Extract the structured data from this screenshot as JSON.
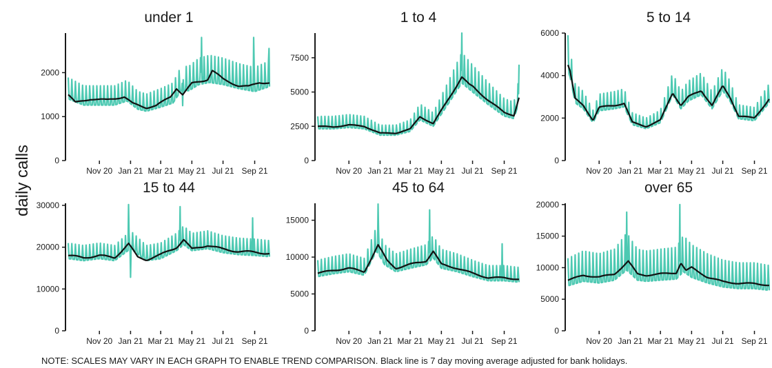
{
  "figure": {
    "ylabel": "daily calls",
    "note": "NOTE: SCALES MAY VARY IN EACH GRAPH TO ENABLE TREND COMPARISON. Black line is 7 day moving average adjusted for bank holidays."
  },
  "colors": {
    "daily": "#4dc9b2",
    "average": "#111111",
    "axis": "#1a1a1a"
  },
  "chart_data": [
    {
      "type": "line",
      "title": "under 1",
      "x_range": [
        "2020-09-01",
        "2021-09-30"
      ],
      "ylim": [
        0,
        2900
      ],
      "yticks": [
        0,
        1000,
        2000
      ],
      "xticks": [
        {
          "date": "2020-11-01",
          "label": "Nov 20"
        },
        {
          "date": "2021-01-01",
          "label": "Jan 21"
        },
        {
          "date": "2021-03-01",
          "label": "Mar 21"
        },
        {
          "date": "2021-05-01",
          "label": "May 21"
        },
        {
          "date": "2021-07-01",
          "label": "Jul 21"
        },
        {
          "date": "2021-09-01",
          "label": "Sep 21"
        }
      ],
      "series": [
        {
          "kind": "daily",
          "weekly_amplitude": 0.25,
          "x": [
            "2020-09-01",
            "2020-10-01",
            "2020-11-01",
            "2020-12-01",
            "2020-12-25",
            "2021-01-15",
            "2021-02-01",
            "2021-03-01",
            "2021-03-25",
            "2021-04-10",
            "2021-04-25",
            "2021-05-15",
            "2021-06-05",
            "2021-07-01",
            "2021-08-01",
            "2021-09-01",
            "2021-09-30"
          ],
          "y": [
            1500,
            1350,
            1350,
            1350,
            1450,
            1250,
            1200,
            1300,
            1400,
            1700,
            1700,
            1850,
            1900,
            1850,
            1750,
            1680,
            1800
          ],
          "spikes": [
            {
              "date": "2021-04-13",
              "y": 1250
            },
            {
              "date": "2021-05-20",
              "y": 2800
            },
            {
              "date": "2021-08-30",
              "y": 2800
            },
            {
              "date": "2021-09-29",
              "y": 2550
            }
          ]
        },
        {
          "kind": "average",
          "x": [
            "2020-09-01",
            "2020-09-15",
            "2020-10-15",
            "2020-11-15",
            "2020-12-20",
            "2021-01-05",
            "2021-02-01",
            "2021-02-20",
            "2021-03-20",
            "2021-04-01",
            "2021-04-13",
            "2021-05-01",
            "2021-06-01",
            "2021-06-10",
            "2021-07-01",
            "2021-08-01",
            "2021-08-20",
            "2021-09-10",
            "2021-09-30"
          ],
          "y": [
            1500,
            1320,
            1400,
            1380,
            1450,
            1300,
            1200,
            1250,
            1450,
            1650,
            1500,
            1750,
            1850,
            2050,
            1850,
            1700,
            1680,
            1780,
            1770
          ]
        }
      ]
    },
    {
      "type": "line",
      "title": "1 to 4",
      "x_range": [
        "2020-09-01",
        "2021-09-30"
      ],
      "ylim": [
        0,
        9300
      ],
      "yticks": [
        0,
        2500,
        5000,
        7500
      ],
      "xticks": [
        {
          "date": "2020-11-01",
          "label": "Nov 20"
        },
        {
          "date": "2021-01-01",
          "label": "Jan 21"
        },
        {
          "date": "2021-03-01",
          "label": "Mar 21"
        },
        {
          "date": "2021-05-01",
          "label": "May 21"
        },
        {
          "date": "2021-07-01",
          "label": "Jul 21"
        },
        {
          "date": "2021-09-01",
          "label": "Sep 21"
        }
      ],
      "series": [
        {
          "kind": "daily",
          "weekly_amplitude": 0.28,
          "x": [
            "2020-09-01",
            "2020-10-01",
            "2020-11-01",
            "2020-12-01",
            "2021-01-01",
            "2021-02-01",
            "2021-03-01",
            "2021-03-20",
            "2021-04-15",
            "2021-05-15",
            "2021-06-10",
            "2021-07-01",
            "2021-08-01",
            "2021-09-01",
            "2021-09-20",
            "2021-09-30"
          ],
          "y": [
            2500,
            2500,
            2600,
            2500,
            2000,
            2000,
            2300,
            3200,
            2700,
            4500,
            6100,
            5400,
            4400,
            3500,
            3300,
            4600
          ],
          "spikes": [
            {
              "date": "2021-06-10",
              "y": 9300
            },
            {
              "date": "2021-09-30",
              "y": 7000
            }
          ]
        },
        {
          "kind": "average",
          "x": [
            "2020-09-01",
            "2020-10-01",
            "2020-11-01",
            "2020-12-01",
            "2021-01-01",
            "2021-02-01",
            "2021-03-01",
            "2021-03-20",
            "2021-04-15",
            "2021-05-15",
            "2021-06-10",
            "2021-06-25",
            "2021-07-01",
            "2021-08-01",
            "2021-09-01",
            "2021-09-20",
            "2021-09-30"
          ],
          "y": [
            2500,
            2450,
            2600,
            2500,
            2000,
            2000,
            2300,
            3200,
            2700,
            4500,
            6100,
            5500,
            5400,
            4400,
            3500,
            3300,
            4600
          ]
        }
      ]
    },
    {
      "type": "line",
      "title": "5 to 14",
      "x_range": [
        "2020-09-01",
        "2021-09-30"
      ],
      "ylim": [
        0,
        6000
      ],
      "yticks": [
        0,
        2000,
        4000,
        6000
      ],
      "xticks": [
        {
          "date": "2020-11-01",
          "label": "Nov 20"
        },
        {
          "date": "2021-01-01",
          "label": "Jan 21"
        },
        {
          "date": "2021-03-01",
          "label": "Mar 21"
        },
        {
          "date": "2021-05-01",
          "label": "May 21"
        },
        {
          "date": "2021-07-01",
          "label": "Jul 21"
        },
        {
          "date": "2021-09-01",
          "label": "Sep 21"
        }
      ],
      "series": [
        {
          "kind": "daily",
          "weekly_amplitude": 0.24,
          "x": [
            "2020-09-01",
            "2020-09-05",
            "2020-09-15",
            "2020-10-01",
            "2020-10-20",
            "2020-11-01",
            "2020-12-01",
            "2020-12-20",
            "2021-01-05",
            "2021-02-01",
            "2021-03-01",
            "2021-03-25",
            "2021-04-10",
            "2021-04-25",
            "2021-05-20",
            "2021-06-10",
            "2021-07-01",
            "2021-07-15",
            "2021-08-01",
            "2021-09-01",
            "2021-09-30"
          ],
          "y": [
            4500,
            4200,
            2900,
            2600,
            1900,
            2500,
            2600,
            2700,
            1800,
            1600,
            1900,
            3300,
            2600,
            3000,
            3300,
            2600,
            3500,
            3000,
            2100,
            2000,
            2900
          ],
          "spikes": [
            {
              "date": "2020-09-01",
              "y": 5900
            }
          ]
        },
        {
          "kind": "average",
          "x": [
            "2020-09-01",
            "2020-09-05",
            "2020-09-15",
            "2020-10-01",
            "2020-10-20",
            "2020-11-01",
            "2020-12-01",
            "2020-12-20",
            "2021-01-05",
            "2021-02-01",
            "2021-03-01",
            "2021-03-25",
            "2021-04-10",
            "2021-04-25",
            "2021-05-20",
            "2021-06-10",
            "2021-07-01",
            "2021-07-15",
            "2021-08-01",
            "2021-09-01",
            "2021-09-30"
          ],
          "y": [
            4500,
            4200,
            2900,
            2600,
            1900,
            2500,
            2600,
            2700,
            1800,
            1600,
            1900,
            3200,
            2600,
            3000,
            3300,
            2600,
            3500,
            3000,
            2100,
            2000,
            2900
          ]
        }
      ]
    },
    {
      "type": "line",
      "title": "15 to 44",
      "x_range": [
        "2020-09-01",
        "2021-09-30"
      ],
      "ylim": [
        0,
        30500
      ],
      "yticks": [
        0,
        10000,
        20000,
        30000
      ],
      "xticks": [
        {
          "date": "2020-11-01",
          "label": "Nov 20"
        },
        {
          "date": "2021-01-01",
          "label": "Jan 21"
        },
        {
          "date": "2021-03-01",
          "label": "Mar 21"
        },
        {
          "date": "2021-05-01",
          "label": "May 21"
        },
        {
          "date": "2021-07-01",
          "label": "Jul 21"
        },
        {
          "date": "2021-09-01",
          "label": "Sep 21"
        }
      ],
      "series": [
        {
          "kind": "daily",
          "weekly_amplitude": 0.16,
          "x": [
            "2020-09-01",
            "2020-10-01",
            "2020-11-01",
            "2020-12-01",
            "2021-01-01",
            "2021-02-01",
            "2021-03-01",
            "2021-04-01",
            "2021-04-15",
            "2021-05-01",
            "2021-06-01",
            "2021-07-01",
            "2021-08-01",
            "2021-09-01",
            "2021-09-30"
          ],
          "y": [
            18000,
            17500,
            18000,
            17500,
            20500,
            17500,
            18000,
            20000,
            21500,
            20000,
            20500,
            19500,
            19000,
            18800,
            18500
          ],
          "spikes": [
            {
              "date": "2020-12-28",
              "y": 30200
            },
            {
              "date": "2021-01-01",
              "y": 12800
            },
            {
              "date": "2021-04-08",
              "y": 29700
            },
            {
              "date": "2021-08-28",
              "y": 27000
            }
          ]
        },
        {
          "kind": "average",
          "x": [
            "2020-09-01",
            "2020-10-01",
            "2020-11-01",
            "2020-12-01",
            "2020-12-28",
            "2021-01-15",
            "2021-02-01",
            "2021-03-01",
            "2021-04-01",
            "2021-04-15",
            "2021-05-01",
            "2021-06-01",
            "2021-07-01",
            "2021-08-01",
            "2021-09-01",
            "2021-09-30"
          ],
          "y": [
            18000,
            17500,
            18000,
            17500,
            20800,
            17600,
            17000,
            18200,
            20000,
            21800,
            19500,
            20500,
            19500,
            19000,
            18800,
            18500
          ]
        }
      ]
    },
    {
      "type": "line",
      "title": "45 to 64",
      "x_range": [
        "2020-09-01",
        "2021-09-30"
      ],
      "ylim": [
        0,
        17300
      ],
      "yticks": [
        0,
        5000,
        10000,
        15000
      ],
      "xticks": [
        {
          "date": "2020-11-01",
          "label": "Nov 20"
        },
        {
          "date": "2021-01-01",
          "label": "Jan 21"
        },
        {
          "date": "2021-03-01",
          "label": "Mar 21"
        },
        {
          "date": "2021-05-01",
          "label": "May 21"
        },
        {
          "date": "2021-07-01",
          "label": "Jul 21"
        },
        {
          "date": "2021-09-01",
          "label": "Sep 21"
        }
      ],
      "series": [
        {
          "kind": "daily",
          "weekly_amplitude": 0.22,
          "x": [
            "2020-09-01",
            "2020-10-01",
            "2020-11-01",
            "2020-12-01",
            "2020-12-25",
            "2021-01-10",
            "2021-02-01",
            "2021-03-01",
            "2021-04-01",
            "2021-04-15",
            "2021-05-01",
            "2021-06-01",
            "2021-07-01",
            "2021-08-01",
            "2021-09-01",
            "2021-09-30"
          ],
          "y": [
            7800,
            8200,
            8500,
            8000,
            11500,
            9500,
            8500,
            9000,
            9500,
            10500,
            9000,
            8500,
            7800,
            7200,
            7200,
            7000
          ],
          "spikes": [
            {
              "date": "2020-12-28",
              "y": 17200
            },
            {
              "date": "2021-04-08",
              "y": 16400
            },
            {
              "date": "2021-08-28",
              "y": 11800
            }
          ]
        },
        {
          "kind": "average",
          "x": [
            "2020-09-01",
            "2020-10-01",
            "2020-11-01",
            "2020-12-01",
            "2020-12-28",
            "2021-01-15",
            "2021-02-01",
            "2021-03-01",
            "2021-04-01",
            "2021-04-15",
            "2021-05-01",
            "2021-06-01",
            "2021-07-01",
            "2021-08-01",
            "2021-09-01",
            "2021-09-30"
          ],
          "y": [
            7800,
            8200,
            8500,
            8000,
            11600,
            9500,
            8500,
            9000,
            9500,
            10800,
            9000,
            8500,
            7800,
            7200,
            7200,
            7000
          ]
        }
      ]
    },
    {
      "type": "line",
      "title": "over 65",
      "x_range": [
        "2020-09-01",
        "2021-09-30"
      ],
      "ylim": [
        0,
        20200
      ],
      "yticks": [
        0,
        5000,
        10000,
        15000,
        20000
      ],
      "xticks": [
        {
          "date": "2020-11-01",
          "label": "Nov 20"
        },
        {
          "date": "2021-01-01",
          "label": "Jan 21"
        },
        {
          "date": "2021-03-01",
          "label": "Mar 21"
        },
        {
          "date": "2021-05-01",
          "label": "May 21"
        },
        {
          "date": "2021-07-01",
          "label": "Jul 21"
        },
        {
          "date": "2021-09-01",
          "label": "Sep 21"
        }
      ],
      "series": [
        {
          "kind": "daily",
          "weekly_amplitude": 0.42,
          "x": [
            "2020-09-01",
            "2020-10-01",
            "2020-11-01",
            "2020-12-01",
            "2020-12-25",
            "2021-01-15",
            "2021-02-01",
            "2021-03-01",
            "2021-04-01",
            "2021-04-15",
            "2021-05-01",
            "2021-06-01",
            "2021-07-01",
            "2021-08-01",
            "2021-09-01",
            "2021-09-30"
          ],
          "y": [
            8000,
            8800,
            8500,
            9000,
            10800,
            9000,
            8800,
            9000,
            9200,
            10500,
            9500,
            8500,
            7800,
            7500,
            7500,
            7200
          ],
          "spikes": [
            {
              "date": "2020-12-25",
              "y": 18800
            },
            {
              "date": "2021-04-08",
              "y": 20000
            }
          ]
        },
        {
          "kind": "average",
          "x": [
            "2020-09-01",
            "2020-10-01",
            "2020-11-01",
            "2020-12-01",
            "2020-12-28",
            "2021-01-15",
            "2021-02-01",
            "2021-03-01",
            "2021-04-01",
            "2021-04-10",
            "2021-04-20",
            "2021-05-01",
            "2021-06-01",
            "2021-07-01",
            "2021-08-01",
            "2021-09-01",
            "2021-09-30"
          ],
          "y": [
            8000,
            8800,
            8500,
            9000,
            11000,
            9000,
            8800,
            9000,
            9200,
            10800,
            9500,
            10000,
            8500,
            7800,
            7500,
            7500,
            7200
          ]
        }
      ]
    }
  ]
}
